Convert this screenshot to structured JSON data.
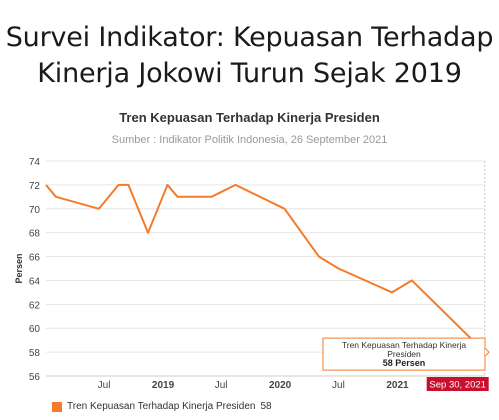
{
  "headline": {
    "line1": "Survei Indikator: Kepuasan Terhadap",
    "line2": "Kinerja Jokowi Turun Sejak 2019"
  },
  "colors": {
    "series": "#f47b2a",
    "tooltip_border": "#f47b2a",
    "date_badge": "#c8102e",
    "grid": "#e6e6e6",
    "axis": "#cccccc"
  },
  "chart_data": {
    "type": "line",
    "title": "Tren Kepuasan Terhadap Kinerja Presiden",
    "subtitle": "Sumber : Indikator Politik Indonesia, 26 September 2021",
    "ylabel": "Persen",
    "xlabel": "",
    "ylim": [
      56,
      74
    ],
    "yticks": [
      56,
      58,
      60,
      62,
      64,
      66,
      68,
      70,
      72,
      74
    ],
    "grid": true,
    "x_ticks": [
      {
        "date": "2018-07-01",
        "label": "Jul",
        "bold": false
      },
      {
        "date": "2019-01-01",
        "label": "2019",
        "bold": true
      },
      {
        "date": "2019-07-01",
        "label": "Jul",
        "bold": false
      },
      {
        "date": "2020-01-01",
        "label": "2020",
        "bold": true
      },
      {
        "date": "2020-07-01",
        "label": "Jul",
        "bold": false
      },
      {
        "date": "2021-01-01",
        "label": "2021",
        "bold": true
      }
    ],
    "x_range": [
      "2018-01-01",
      "2021-10-01"
    ],
    "series": [
      {
        "name": "Tren Kepuasan Terhadap Kinerja Presiden",
        "points": [
          {
            "date": "2018-01-01",
            "value": 72
          },
          {
            "date": "2018-02-01",
            "value": 71
          },
          {
            "date": "2018-06-15",
            "value": 70
          },
          {
            "date": "2018-08-15",
            "value": 72
          },
          {
            "date": "2018-09-15",
            "value": 72
          },
          {
            "date": "2018-11-15",
            "value": 68
          },
          {
            "date": "2019-01-15",
            "value": 72
          },
          {
            "date": "2019-02-15",
            "value": 71
          },
          {
            "date": "2019-06-01",
            "value": 71
          },
          {
            "date": "2019-08-15",
            "value": 72
          },
          {
            "date": "2020-01-15",
            "value": 70
          },
          {
            "date": "2020-05-01",
            "value": 66
          },
          {
            "date": "2020-07-01",
            "value": 65
          },
          {
            "date": "2020-12-15",
            "value": 63
          },
          {
            "date": "2021-02-15",
            "value": 64
          },
          {
            "date": "2021-09-30",
            "value": 58
          }
        ]
      }
    ],
    "tooltip": {
      "series_name": "Tren Kepuasan Terhadap Kinerja Presiden",
      "value_text": "58 Persen",
      "date_label": "Sep 30, 2021"
    },
    "legend": {
      "label": "Tren Kepuasan Terhadap Kinerja Presiden",
      "value": "58",
      "position": "bottom-left"
    }
  }
}
